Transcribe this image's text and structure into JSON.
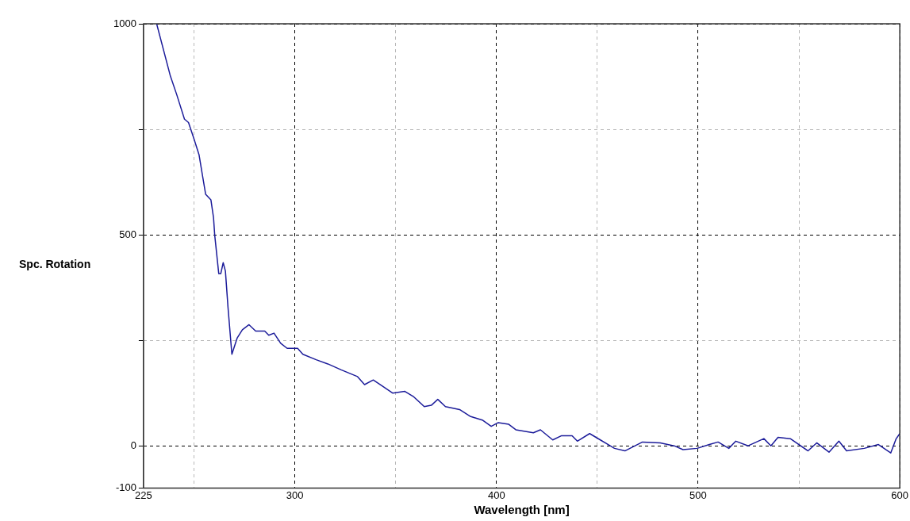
{
  "chart_data": {
    "type": "line",
    "xlabel": "Wavelength [nm]",
    "ylabel": "Spc. Rotation",
    "xlim": [
      225,
      600
    ],
    "xticks": [
      225,
      {
        "value": 250,
        "label": null
      },
      300,
      {
        "value": 350,
        "label": null
      },
      400,
      {
        "value": 450,
        "label": null
      },
      500,
      {
        "value": 550,
        "label": null
      },
      600
    ],
    "ylim": [
      -100,
      1000
    ],
    "yticks": [
      -100,
      0,
      {
        "value": 250,
        "label": null
      },
      500,
      {
        "value": 750,
        "label": null
      },
      1000
    ],
    "grid": true,
    "legend": false,
    "marker": "none",
    "line_style": "solid",
    "series": [
      {
        "color": "#1c1c9a",
        "x": [
          231.5,
          238.2,
          241.4,
          245.3,
          247.3,
          249.9,
          252.5,
          255.8,
          258.4,
          259.7,
          260.3,
          262.3,
          263.3,
          264.5,
          265.6,
          266.9,
          268.8,
          271.4,
          274,
          277.3,
          280.6,
          285.1,
          287.1,
          289.7,
          293,
          296.2,
          301.4,
          304,
          310.6,
          316.4,
          323,
          331.1,
          334.6,
          338.9,
          343.3,
          348.5,
          354.6,
          359,
          364.2,
          367.7,
          370.9,
          374.7,
          381.7,
          386.9,
          393,
          397.4,
          400.9,
          406.1,
          409.6,
          418.3,
          421.8,
          427.9,
          432.3,
          437.5,
          440.1,
          446.2,
          451.5,
          458.5,
          463.7,
          472.4,
          481.2,
          488.1,
          492.5,
          499.5,
          505.6,
          509.9,
          515.2,
          518.7,
          524.8,
          532.6,
          536.1,
          539.6,
          545.7,
          554.5,
          558.8,
          564.9,
          569.8,
          573.6,
          582.4,
          589.4,
          595.5,
          598.1,
          600
        ],
        "values": [
          1000,
          878,
          833,
          774,
          766,
          729,
          690,
          596,
          583,
          541,
          499,
          408,
          408,
          434,
          414,
          327,
          217,
          255,
          275,
          287,
          272,
          272,
          262,
          267,
          243,
          231,
          231,
          217,
          204,
          194,
          180,
          164,
          145,
          156,
          142,
          125,
          129,
          116,
          93,
          96,
          110,
          93,
          86,
          70,
          61,
          46,
          55,
          51,
          38,
          31,
          38,
          14,
          24,
          24,
          11,
          29,
          14,
          -6,
          -12,
          9,
          7,
          0,
          -9,
          -6,
          3,
          9,
          -6,
          11,
          0,
          17,
          0,
          20,
          17,
          -12,
          7,
          -15,
          11,
          -12,
          -6,
          3,
          -17,
          16,
          29
        ]
      }
    ]
  }
}
